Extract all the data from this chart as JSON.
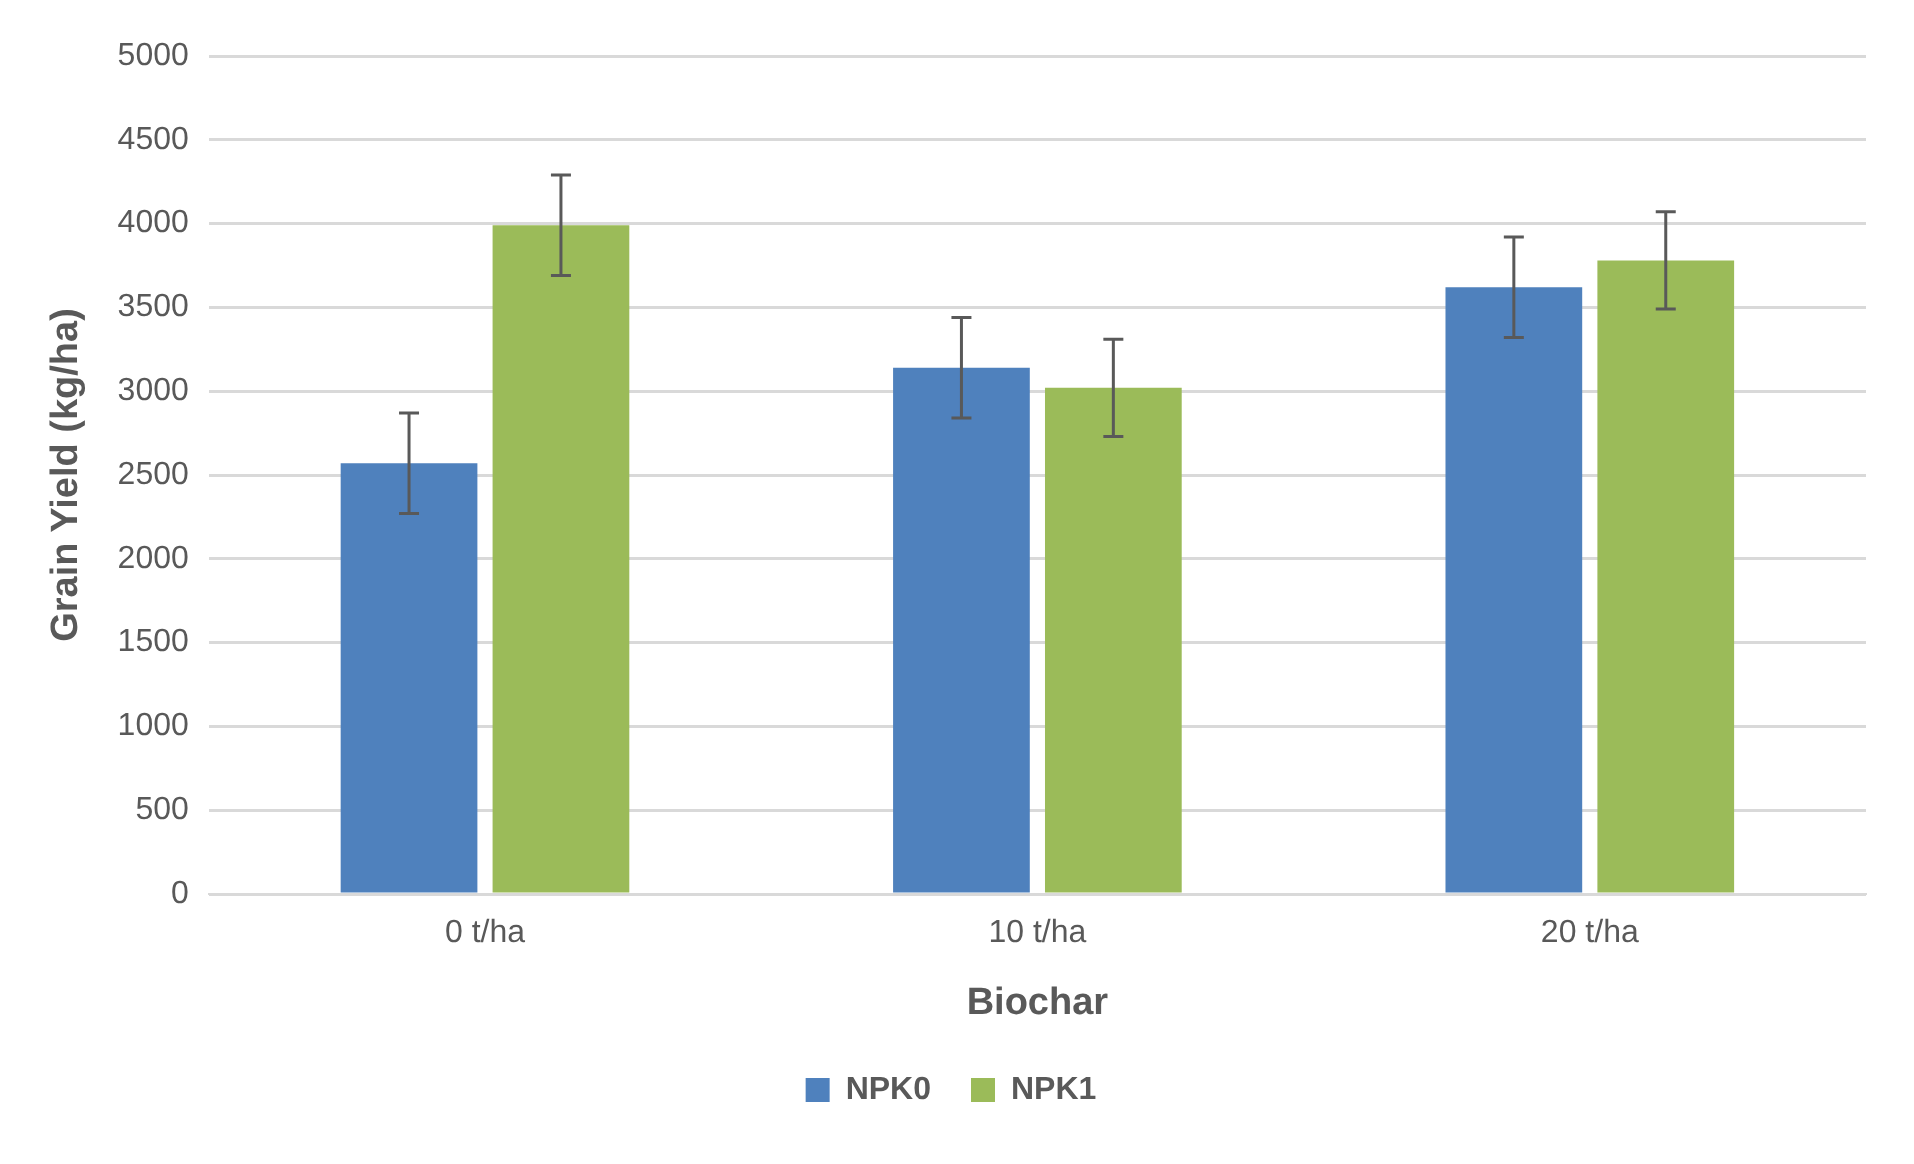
{
  "chart_data": {
    "type": "bar",
    "xlabel": "Biochar",
    "ylabel": "Grain Yield (kg/ha)",
    "categories": [
      "0 t/ha",
      "10 t/ha",
      "20 t/ha"
    ],
    "series": [
      {
        "name": "NPK0",
        "color": "#4f81bd",
        "values": [
          2570,
          3140,
          3620
        ],
        "errors": [
          300,
          300,
          300
        ]
      },
      {
        "name": "NPK1",
        "color": "#9bbb59",
        "values": [
          3990,
          3020,
          3780
        ],
        "errors": [
          300,
          290,
          290
        ]
      }
    ],
    "ylim": [
      0,
      5000
    ],
    "yticks": [
      0,
      500,
      1000,
      1500,
      2000,
      2500,
      3000,
      3500,
      4000,
      4500,
      5000
    ],
    "grid": "y",
    "legend": "bottom"
  }
}
